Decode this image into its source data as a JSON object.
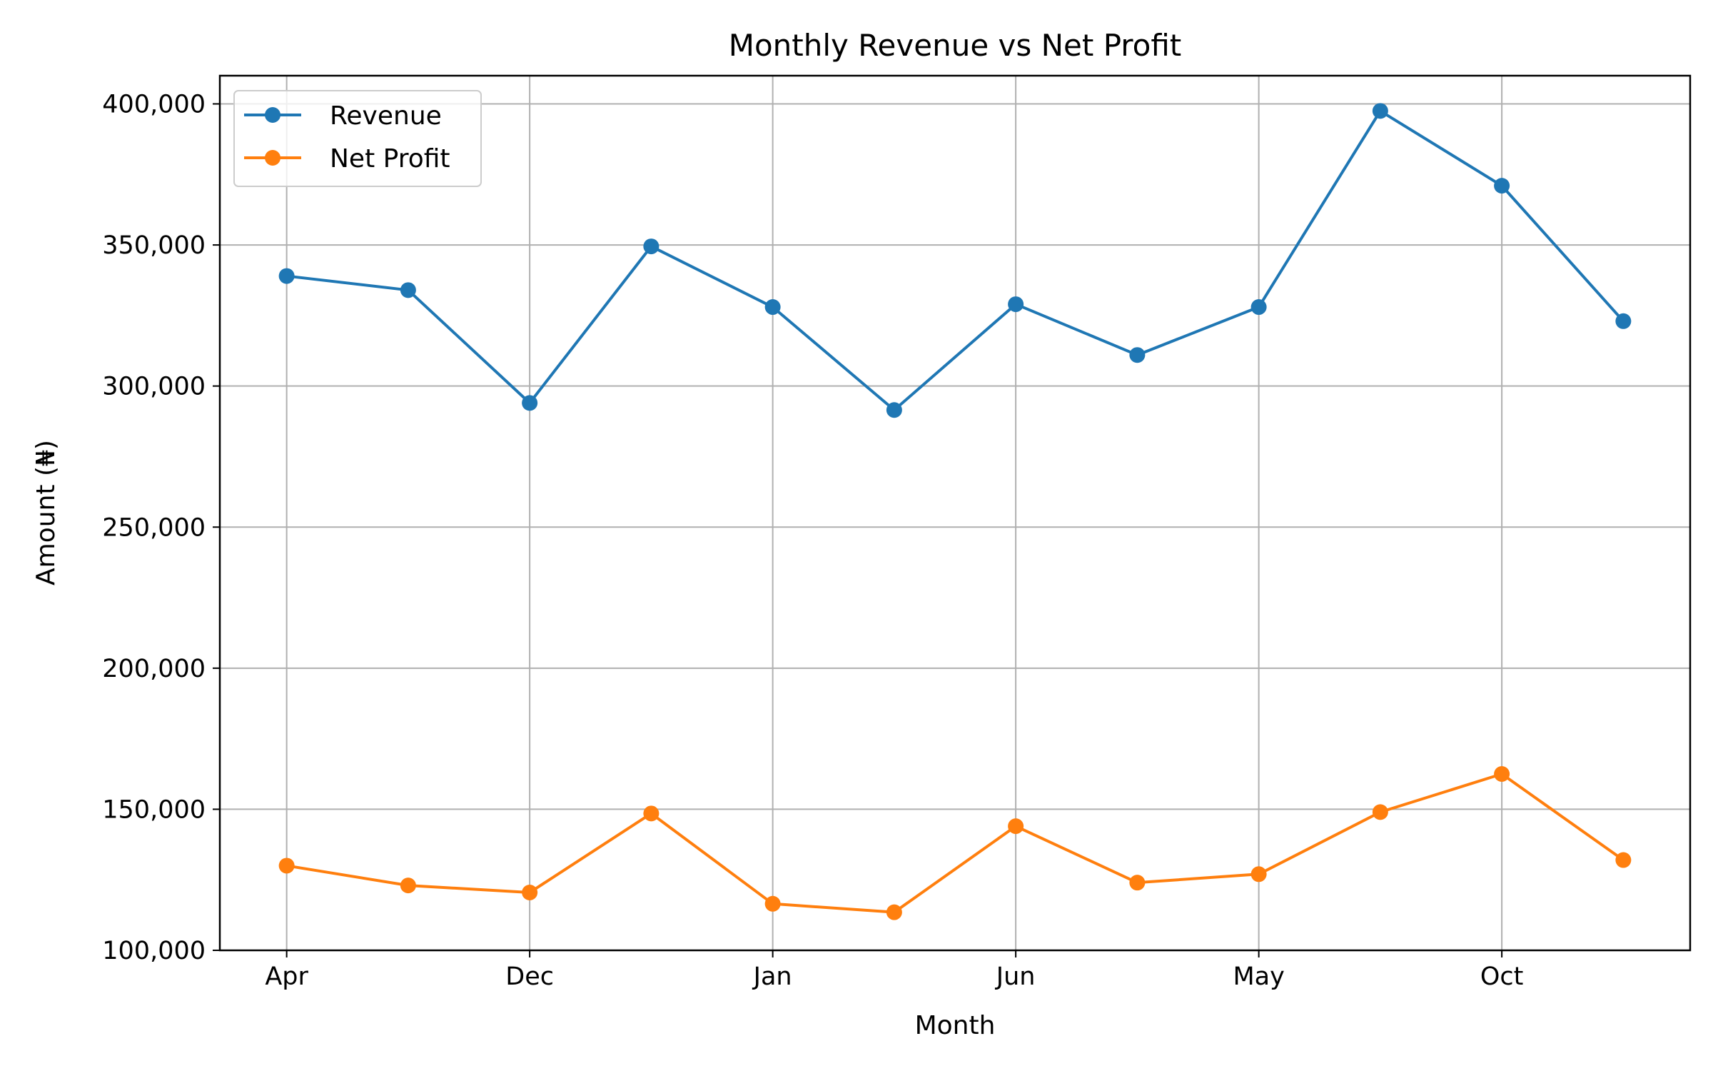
{
  "chart_data": {
    "type": "line",
    "title": "Monthly Revenue vs Net Profit",
    "xlabel": "Month",
    "ylabel": "Amount (₦)",
    "x_tick_labels": [
      "Apr",
      "Dec",
      "Jan",
      "Jun",
      "May",
      "Oct"
    ],
    "x_tick_positions": [
      0,
      2,
      4,
      6,
      8,
      10
    ],
    "x": [
      0,
      1,
      2,
      3,
      4,
      5,
      6,
      7,
      8,
      9,
      10,
      11
    ],
    "ylim": [
      100000,
      410000
    ],
    "y_ticks": [
      100000,
      150000,
      200000,
      250000,
      300000,
      350000,
      400000
    ],
    "y_tick_labels": [
      "100,000",
      "150,000",
      "200,000",
      "250,000",
      "300,000",
      "350,000",
      "400,000"
    ],
    "grid": true,
    "legend_position": "top-left",
    "series": [
      {
        "name": "Revenue",
        "color": "#1f77b4",
        "marker": "circle",
        "values": [
          339000,
          334000,
          294000,
          349500,
          328000,
          291500,
          329000,
          311000,
          328000,
          397500,
          371000,
          323000
        ]
      },
      {
        "name": "Net Profit",
        "color": "#ff7f0e",
        "marker": "circle",
        "values": [
          130000,
          123000,
          120500,
          148500,
          116500,
          113500,
          144000,
          124000,
          127000,
          149000,
          162500,
          132000
        ]
      }
    ]
  }
}
